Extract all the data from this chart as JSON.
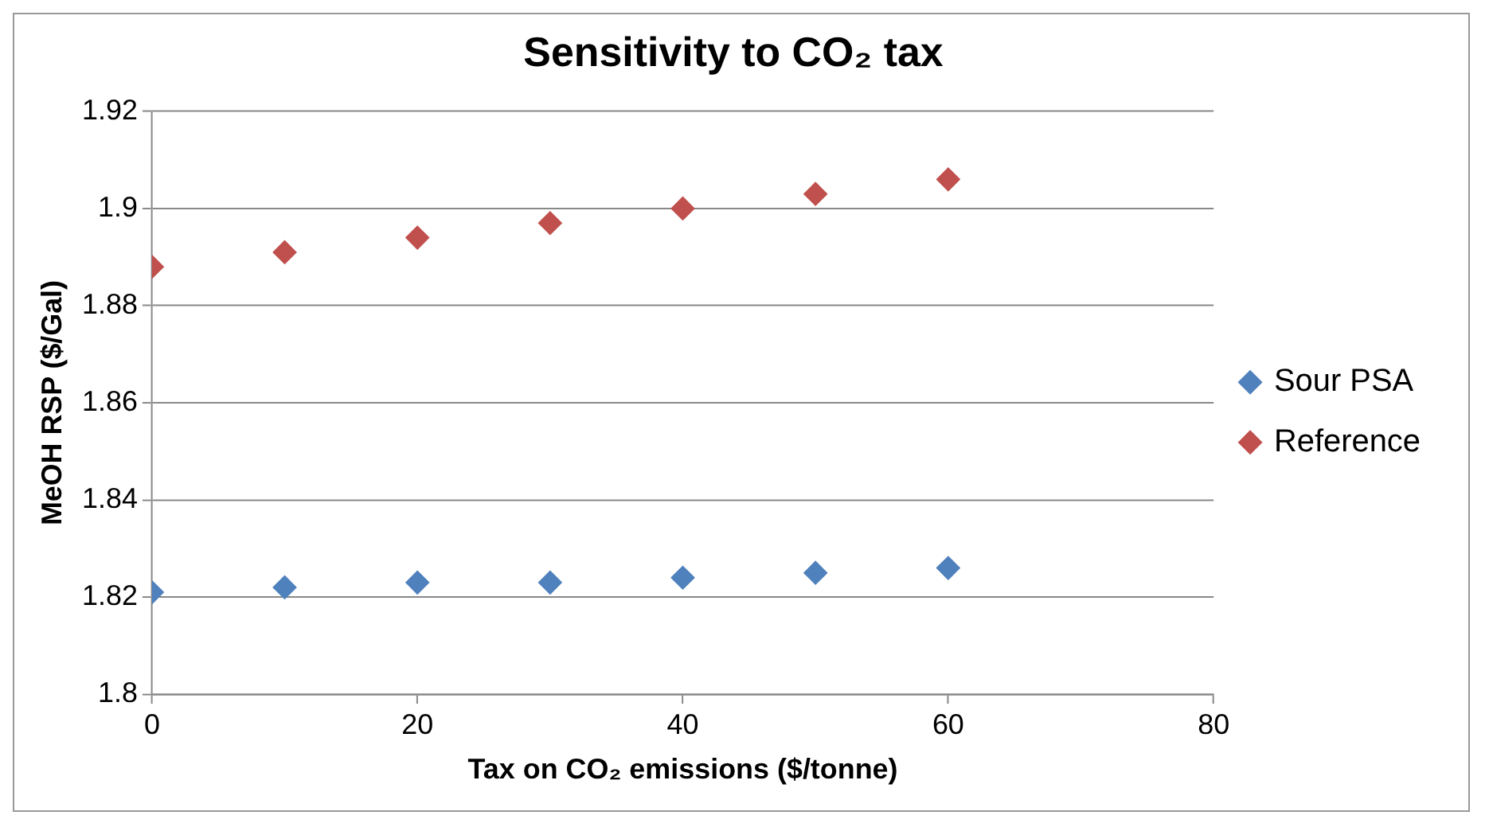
{
  "chart_data": {
    "type": "scatter",
    "title": "Sensitivity to CO₂ tax",
    "xlabel": "Tax on CO₂ emissions ($/tonne)",
    "ylabel": "MeOH RSP ($/Gal)",
    "x": [
      0,
      10,
      20,
      30,
      40,
      50,
      60
    ],
    "series": [
      {
        "name": "Sour PSA",
        "color": "#4f81bd",
        "values": [
          1.821,
          1.822,
          1.823,
          1.823,
          1.824,
          1.825,
          1.826
        ]
      },
      {
        "name": "Reference",
        "color": "#c0504d",
        "values": [
          1.888,
          1.891,
          1.894,
          1.897,
          1.9,
          1.903,
          1.906
        ]
      }
    ],
    "xlim": [
      0,
      80
    ],
    "xticks": [
      0,
      20,
      40,
      60,
      80
    ],
    "ylim": [
      1.8,
      1.92
    ],
    "yticks": [
      1.8,
      1.82,
      1.84,
      1.86,
      1.88,
      1.9,
      1.92
    ],
    "grid": "y",
    "legend": "right",
    "marker": "diamond"
  }
}
